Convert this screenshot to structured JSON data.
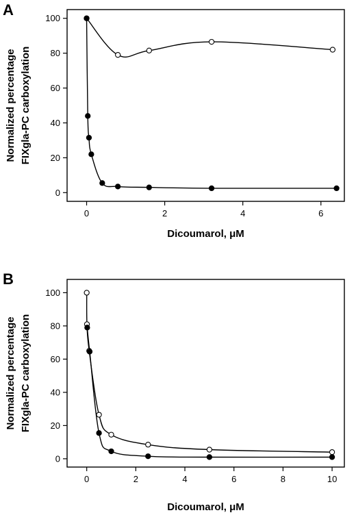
{
  "chart_data": [
    {
      "type": "scatter",
      "panel_label": "A",
      "xlabel": "Dicoumarol, μM",
      "ylabel": [
        "Normalized percentage",
        "FIXgla-PC carboxylation"
      ],
      "xlim": [
        -0.5,
        6.6
      ],
      "ylim": [
        -5,
        105
      ],
      "xticks": [
        0,
        2,
        4,
        6
      ],
      "yticks": [
        0,
        20,
        40,
        60,
        80,
        100
      ],
      "grid": false,
      "series": [
        {
          "marker": "open-circle",
          "x": [
            0,
            0.8,
            1.6,
            3.2,
            6.3
          ],
          "y": [
            100,
            79,
            81.5,
            86.5,
            82
          ]
        },
        {
          "marker": "filled-circle",
          "x": [
            0,
            0.03,
            0.06,
            0.12,
            0.4,
            0.8,
            1.6,
            3.2,
            6.4
          ],
          "y": [
            100,
            44,
            31.5,
            22,
            5.5,
            3.5,
            3,
            2.5,
            2.5
          ]
        }
      ]
    },
    {
      "type": "scatter",
      "panel_label": "B",
      "xlabel": "Dicoumarol, μM",
      "ylabel": [
        "Normalized percentage",
        "FIXgla-PC carboxylation"
      ],
      "xlim": [
        -0.8,
        10.5
      ],
      "ylim": [
        -5,
        108
      ],
      "xticks": [
        0,
        2,
        4,
        6,
        8,
        10
      ],
      "yticks": [
        0,
        20,
        40,
        60,
        80,
        100
      ],
      "grid": false,
      "series": [
        {
          "marker": "open-circle",
          "x": [
            0,
            0.01,
            0.1,
            0.5,
            1,
            2.5,
            5,
            10
          ],
          "y": [
            100,
            81,
            65,
            26.5,
            14.5,
            8.5,
            5.5,
            4
          ]
        },
        {
          "marker": "filled-circle",
          "x": [
            0.02,
            0.12,
            0.5,
            1,
            2.5,
            5,
            10
          ],
          "y": [
            79,
            64.5,
            15.5,
            4.5,
            1.5,
            1,
            1
          ]
        }
      ]
    }
  ]
}
